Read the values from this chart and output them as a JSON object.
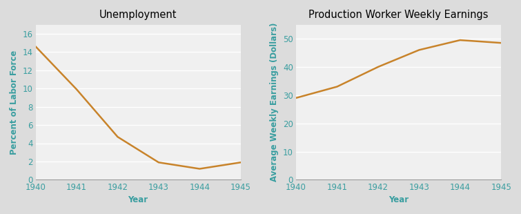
{
  "unemployment": {
    "title": "Unemployment",
    "xlabel": "Year",
    "ylabel": "Percent of Labor Force",
    "years": [
      1940,
      1941,
      1942,
      1943,
      1944,
      1945
    ],
    "values": [
      14.6,
      9.9,
      4.7,
      1.9,
      1.2,
      1.9
    ],
    "ylim": [
      0,
      17
    ],
    "yticks": [
      0,
      2,
      4,
      6,
      8,
      10,
      12,
      14,
      16
    ],
    "xlim": [
      1940,
      1945
    ]
  },
  "earnings": {
    "title": "Production Worker Weekly Earnings",
    "xlabel": "Year",
    "ylabel": "Average Weekly Earnings (Dollars)",
    "years": [
      1940,
      1941,
      1942,
      1943,
      1944,
      1945
    ],
    "values": [
      29.0,
      33.0,
      40.0,
      46.0,
      49.5,
      48.5
    ],
    "ylim": [
      0,
      55
    ],
    "yticks": [
      0,
      10,
      20,
      30,
      40,
      50
    ],
    "xlim": [
      1940,
      1945
    ]
  },
  "line_color": "#c8832a",
  "title_fontsize": 10.5,
  "title_fontweight": "normal",
  "label_color": "#3a9ea0",
  "tick_color": "#3a9ea0",
  "axis_label_fontsize": 8.5,
  "tick_fontsize": 8.5,
  "plot_bg_color": "#f0f0f0",
  "outer_bg_color": "#dcdcdc",
  "grid_color": "#ffffff",
  "grid_linestyle": "-",
  "grid_linewidth": 1.0,
  "bottom_spine_color": "#999999",
  "line_linewidth": 1.8
}
